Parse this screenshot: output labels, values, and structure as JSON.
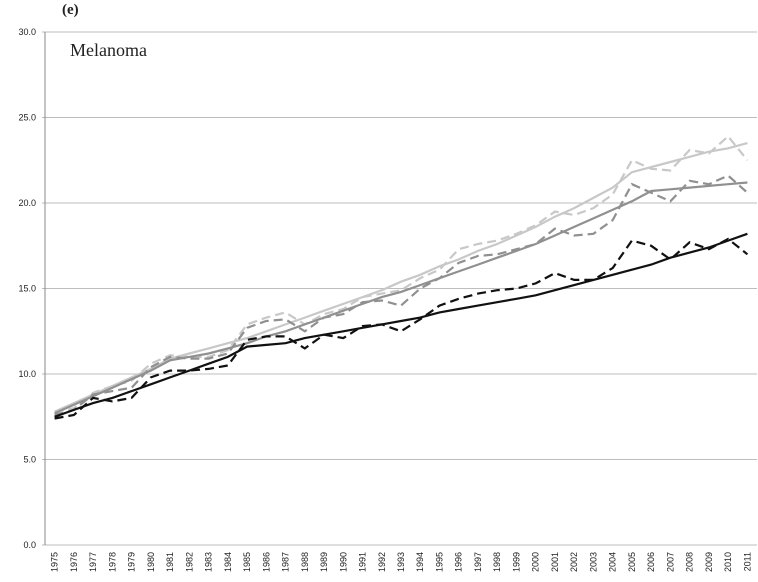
{
  "chart_data": {
    "type": "line",
    "title": "(e)",
    "annotation": "Melanoma",
    "categories": [
      "1975",
      "1976",
      "1977",
      "1978",
      "1979",
      "1980",
      "1981",
      "1982",
      "1983",
      "1984",
      "1985",
      "1986",
      "1987",
      "1988",
      "1989",
      "1990",
      "1991",
      "1992",
      "1993",
      "1994",
      "1995",
      "1996",
      "1997",
      "1998",
      "1999",
      "2000",
      "2001",
      "2002",
      "2003",
      "2004",
      "2005",
      "2006",
      "2007",
      "2008",
      "2009",
      "2010",
      "2011"
    ],
    "ylim": [
      0,
      30
    ],
    "yticks": [
      {
        "value": 0,
        "label": "0.0"
      },
      {
        "value": 5,
        "label": "5.0"
      },
      {
        "value": 10,
        "label": "10.0"
      },
      {
        "value": 15,
        "label": "15.0"
      },
      {
        "value": 20,
        "label": "20.0"
      },
      {
        "value": 25,
        "label": "25.0"
      },
      {
        "value": 30,
        "label": "30.0"
      }
    ],
    "grid": true,
    "series": [
      {
        "color": "#c8c8c8",
        "dashed": true,
        "values": [
          7.8,
          8.0,
          8.9,
          9.3,
          9.6,
          10.6,
          11.1,
          11.0,
          11.0,
          11.4,
          12.9,
          13.3,
          13.6,
          12.9,
          13.5,
          13.8,
          14.5,
          14.7,
          14.9,
          15.6,
          16.1,
          17.3,
          17.6,
          17.8,
          18.2,
          18.7,
          19.5,
          19.3,
          19.7,
          20.5,
          22.5,
          22.0,
          21.9,
          23.1,
          22.9,
          23.9,
          22.5
        ]
      },
      {
        "color": "#c8c8c8",
        "dashed": false,
        "values": [
          7.8,
          8.3,
          8.8,
          9.3,
          9.8,
          10.3,
          10.9,
          11.2,
          11.5,
          11.8,
          12.1,
          12.5,
          12.9,
          13.3,
          13.7,
          14.1,
          14.5,
          14.9,
          15.4,
          15.8,
          16.3,
          16.7,
          17.2,
          17.6,
          18.1,
          18.6,
          19.2,
          19.7,
          20.3,
          20.9,
          21.8,
          22.1,
          22.4,
          22.7,
          23.0,
          23.2,
          23.5
        ]
      },
      {
        "color": "#909090",
        "dashed": true,
        "values": [
          7.6,
          7.9,
          8.8,
          9.0,
          9.2,
          10.4,
          11.0,
          10.9,
          10.9,
          11.2,
          12.7,
          13.1,
          13.2,
          12.5,
          13.3,
          13.5,
          14.2,
          14.3,
          14.0,
          15.0,
          15.6,
          16.5,
          16.9,
          17.0,
          17.3,
          17.6,
          18.5,
          18.1,
          18.2,
          19.0,
          21.1,
          20.6,
          20.1,
          21.3,
          21.1,
          21.6,
          20.6
        ]
      },
      {
        "color": "#909090",
        "dashed": false,
        "values": [
          7.7,
          8.2,
          8.7,
          9.2,
          9.7,
          10.2,
          10.8,
          11.0,
          11.2,
          11.5,
          11.8,
          12.2,
          12.5,
          12.9,
          13.3,
          13.7,
          14.1,
          14.5,
          14.8,
          15.2,
          15.6,
          16.0,
          16.4,
          16.8,
          17.2,
          17.6,
          18.1,
          18.6,
          19.1,
          19.6,
          20.1,
          20.7,
          20.8,
          20.9,
          21.0,
          21.1,
          21.2
        ]
      },
      {
        "color": "#111111",
        "dashed": true,
        "values": [
          7.4,
          7.6,
          8.6,
          8.4,
          8.6,
          9.8,
          10.2,
          10.2,
          10.3,
          10.5,
          12.0,
          12.2,
          12.2,
          11.5,
          12.3,
          12.1,
          12.8,
          12.9,
          12.5,
          13.2,
          14.0,
          14.4,
          14.7,
          14.9,
          15.0,
          15.3,
          15.9,
          15.5,
          15.5,
          16.2,
          17.8,
          17.5,
          16.7,
          17.7,
          17.3,
          17.9,
          17.0
        ]
      },
      {
        "color": "#111111",
        "dashed": false,
        "values": [
          7.5,
          7.9,
          8.3,
          8.6,
          9.0,
          9.4,
          9.8,
          10.2,
          10.6,
          11.0,
          11.6,
          11.7,
          11.8,
          12.1,
          12.3,
          12.5,
          12.7,
          12.9,
          13.1,
          13.3,
          13.6,
          13.8,
          14.0,
          14.2,
          14.4,
          14.6,
          14.9,
          15.2,
          15.5,
          15.8,
          16.1,
          16.4,
          16.8,
          17.1,
          17.4,
          17.8,
          18.2
        ]
      }
    ]
  }
}
